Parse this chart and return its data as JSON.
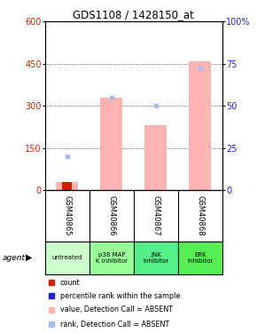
{
  "title": "GDS1108 / 1428150_at",
  "samples": [
    "GSM40865",
    "GSM40866",
    "GSM40867",
    "GSM40868"
  ],
  "agents": [
    "untreated",
    "p38 MAP\nK inhibitor",
    "JNK\ninhibitor",
    "ERK\ninhibitor"
  ],
  "agent_colors": [
    "#ccffcc",
    "#99ff99",
    "#55ee88",
    "#55ee55"
  ],
  "pink_bars": [
    30,
    330,
    230,
    460
  ],
  "blue_dots_rank": [
    20,
    55,
    50,
    72
  ],
  "red_bars": [
    30,
    0,
    0,
    0
  ],
  "ylim_left": [
    0,
    600
  ],
  "ylim_right": [
    0,
    100
  ],
  "yticks_left": [
    0,
    150,
    300,
    450,
    600
  ],
  "yticks_right": [
    0,
    25,
    50,
    75,
    100
  ],
  "ytick_labels_right": [
    "0",
    "25",
    "50",
    "75",
    "100%"
  ],
  "pink_color": "#ffb3b3",
  "light_blue_color": "#aabbee",
  "red_color": "#cc2200",
  "blue_color": "#2222cc",
  "grid_color": "#000000",
  "bg_color": "#ffffff",
  "sample_box_color": "#cccccc",
  "left_axis_color": "#cc2200",
  "right_axis_color": "#2222cc"
}
